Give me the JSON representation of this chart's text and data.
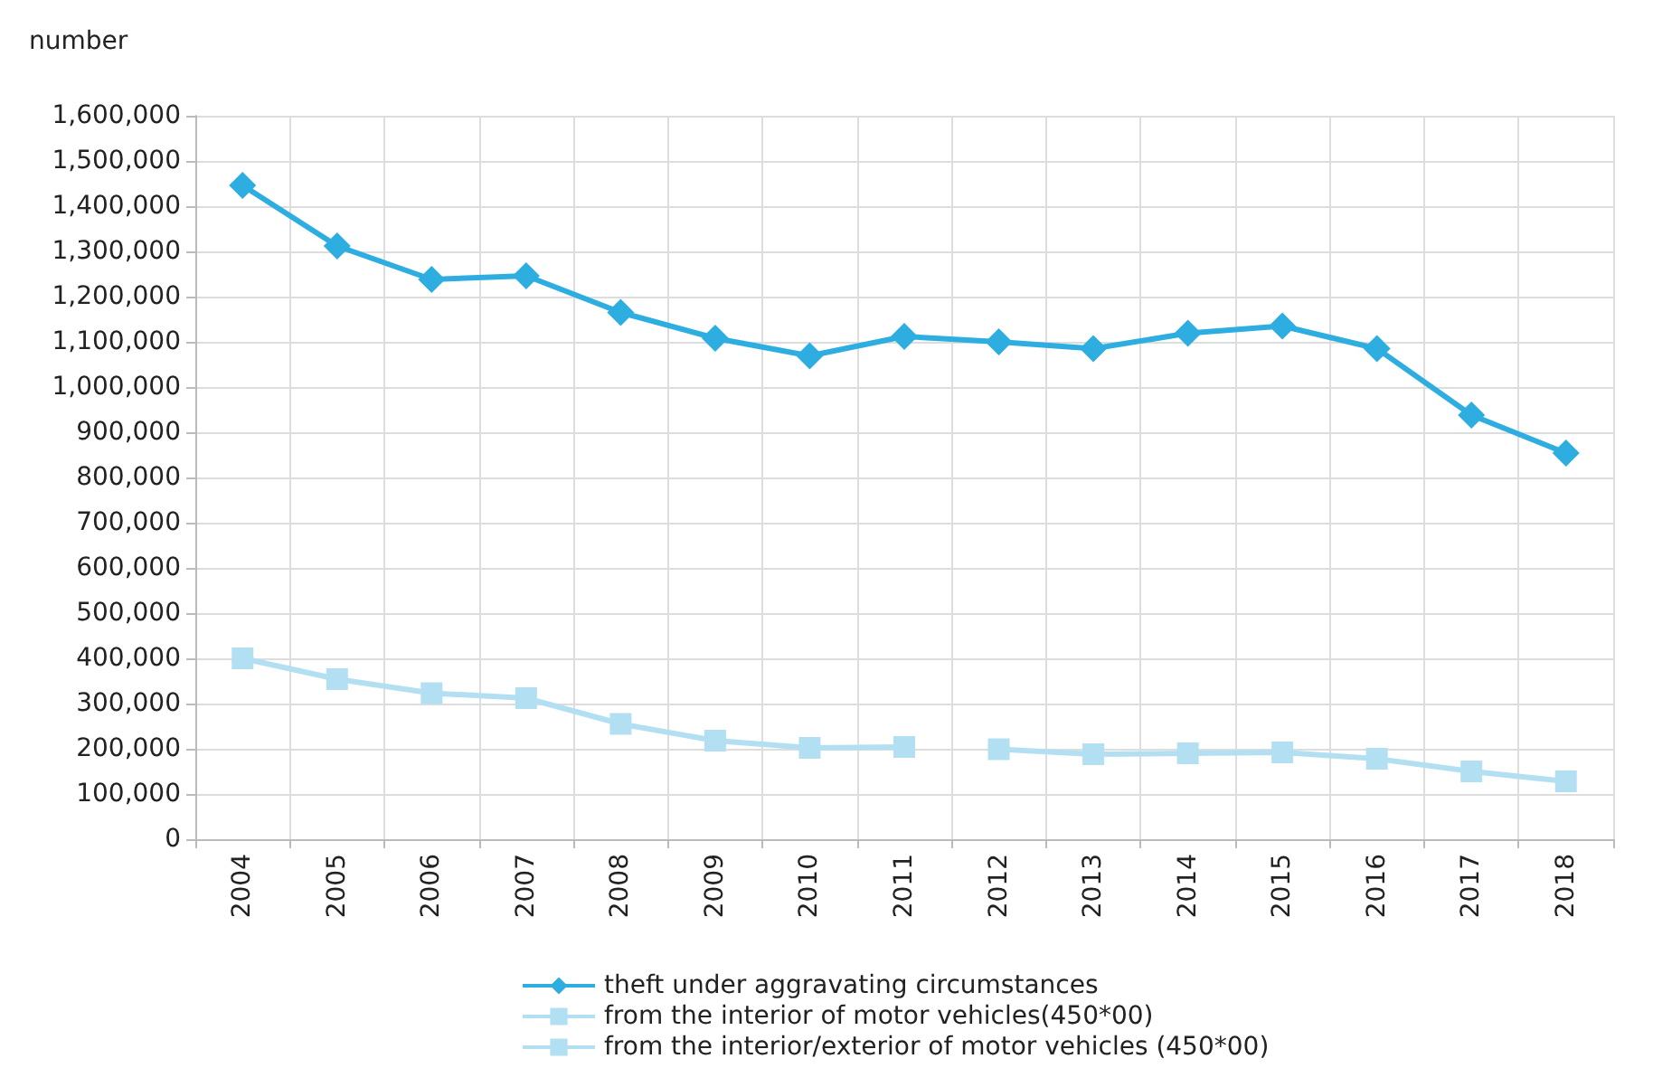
{
  "chart_data": {
    "type": "line",
    "ylabel": "number",
    "categories": [
      "2004",
      "2005",
      "2006",
      "2007",
      "2008",
      "2009",
      "2010",
      "2011",
      "2012",
      "2013",
      "2014",
      "2015",
      "2016",
      "2017",
      "2018"
    ],
    "series": [
      {
        "name": "theft under aggravating circumstances",
        "color": "#2eaee0",
        "marker": "diamond",
        "values": [
          1446000,
          1312000,
          1238000,
          1246000,
          1165000,
          1108000,
          1069000,
          1112000,
          1100000,
          1085000,
          1119000,
          1135000,
          1085000,
          938000,
          854000
        ]
      },
      {
        "name": "from the interior of motor vehicles(450*00)",
        "color": "#b3dff2",
        "marker": "square",
        "values": [
          400000,
          354000,
          323000,
          312000,
          255000,
          218000,
          202000,
          204000,
          null,
          null,
          null,
          null,
          null,
          null,
          null
        ]
      },
      {
        "name": "from the interior/exterior of motor vehicles (450*00)",
        "color": "#b3dff2",
        "marker": "square",
        "values": [
          null,
          null,
          null,
          null,
          null,
          null,
          null,
          null,
          199000,
          188000,
          190000,
          192000,
          178000,
          150000,
          128000
        ]
      }
    ],
    "ylim": [
      0,
      1600000
    ],
    "yticks": [
      0,
      {
        "value": 100000,
        "label": "100,000"
      },
      {
        "value": 200000,
        "label": "200,000"
      },
      {
        "value": 300000,
        "label": "300,000"
      },
      {
        "value": 400000,
        "label": "400,000"
      },
      {
        "value": 500000,
        "label": "500,000"
      },
      {
        "value": 600000,
        "label": "600,000"
      },
      {
        "value": 700000,
        "label": "700,000"
      },
      {
        "value": 800000,
        "label": "800,000"
      },
      {
        "value": 900000,
        "label": "900,000"
      },
      {
        "value": 1000000,
        "label": "1,000,000"
      },
      {
        "value": 1100000,
        "label": "1,100,000"
      },
      {
        "value": 1200000,
        "label": "1,200,000"
      },
      {
        "value": 1300000,
        "label": "1,300,000"
      },
      {
        "value": 1400000,
        "label": "1,400,000"
      },
      {
        "value": 1500000,
        "label": "1,500,000"
      },
      {
        "value": 1600000,
        "label": "1,600,000"
      }
    ],
    "grid": true,
    "legend": "bottom",
    "line_style": "solid"
  }
}
